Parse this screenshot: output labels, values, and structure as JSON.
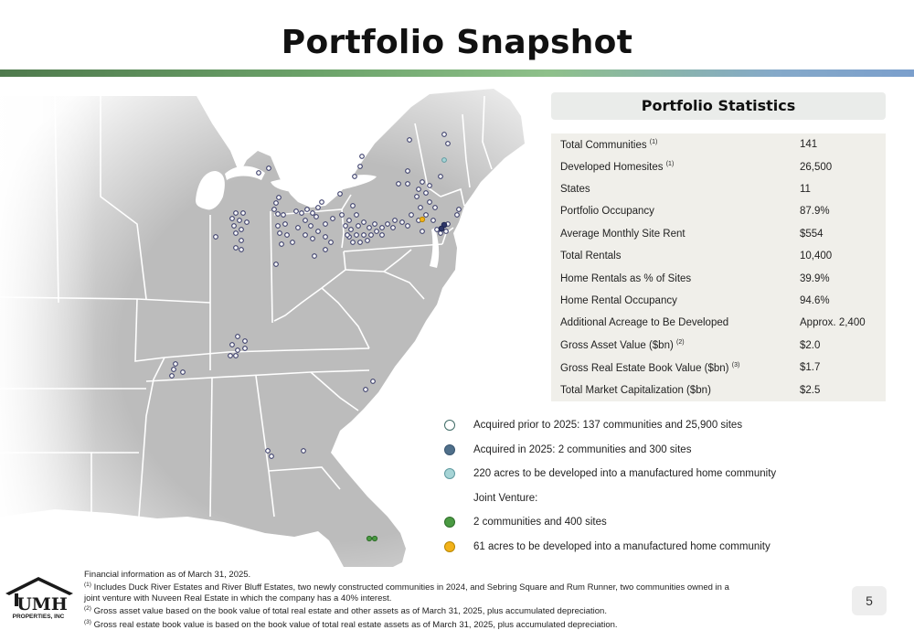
{
  "title": "Portfolio Snapshot",
  "stats": {
    "heading": "Portfolio Statistics",
    "rows": [
      {
        "label": "Total Communities",
        "note": "(1)",
        "value": "141"
      },
      {
        "label": "Developed Homesites",
        "note": "(1)",
        "value": "26,500"
      },
      {
        "label": "States",
        "note": "",
        "value": "11"
      },
      {
        "label": "Portfolio Occupancy",
        "note": "",
        "value": "87.9%"
      },
      {
        "label": "Average Monthly Site Rent",
        "note": "",
        "value": "$554"
      },
      {
        "label": "Total Rentals",
        "note": "",
        "value": "10,400"
      },
      {
        "label": "Home Rentals as % of Sites",
        "note": "",
        "value": "39.9%"
      },
      {
        "label": "Home Rental Occupancy",
        "note": "",
        "value": "94.6%"
      },
      {
        "label": "Additional Acreage to Be Developed",
        "note": "",
        "value": "Approx. 2,400"
      },
      {
        "label": "Gross Asset Value ($bn)",
        "note": "(2)",
        "value": "$2.0"
      },
      {
        "label": "Gross Real Estate Book Value ($bn)",
        "note": "(3)",
        "value": "$1.7"
      },
      {
        "label": "Total Market Capitalization ($bn)",
        "note": "",
        "value": "$2.5"
      }
    ]
  },
  "legend": {
    "items": [
      {
        "text": "Acquired prior to 2025: 137 communities and 25,900 sites",
        "color": "#ffffff",
        "border": "#3f6b66"
      },
      {
        "text": "Acquired in 2025: 2 communities and 300 sites",
        "color": "#4f6f8a",
        "border": "#3a5670"
      },
      {
        "text": "220 acres to be developed into a manufactured home community",
        "color": "#a6d4d6",
        "border": "#5f9aa0"
      },
      {
        "text": "Joint Venture:",
        "color": "",
        "border": ""
      },
      {
        "text": "2 communities and 400 sites",
        "color": "#4a9a42",
        "border": "#2f6e2a"
      },
      {
        "text": "61 acres to be developed into a manufactured home community",
        "color": "#f2b21a",
        "border": "#b88600"
      }
    ]
  },
  "map_colors": {
    "land": "#bcbcbc",
    "borders": "#ffffff",
    "dot_fill": "#ffffff",
    "dot_stroke": "#3a3d6a"
  },
  "footnotes": {
    "l0": "Financial information as of March 31, 2025.",
    "l1_mark": "(1)",
    "l1": " Includes Duck River Estates and River Bluff Estates, two newly constructed communities in 2024, and Sebring Square and Rum Runner, two communities owned in a",
    "l1b": "joint venture with Nuveen Real Estate in which the company has a 40% interest.",
    "l2_mark": "(2)",
    "l2": " Gross asset value based on the book value of total real estate and other assets as of March 31, 2025, plus accumulated depreciation.",
    "l3_mark": "(3)",
    "l3": " Gross real estate book value is based on the book value of total real estate assets as of March 31, 2025, plus accumulated depreciation."
  },
  "logo": {
    "name": "UMH",
    "sub": "PROPERTIES, INC"
  },
  "page_number": "5"
}
